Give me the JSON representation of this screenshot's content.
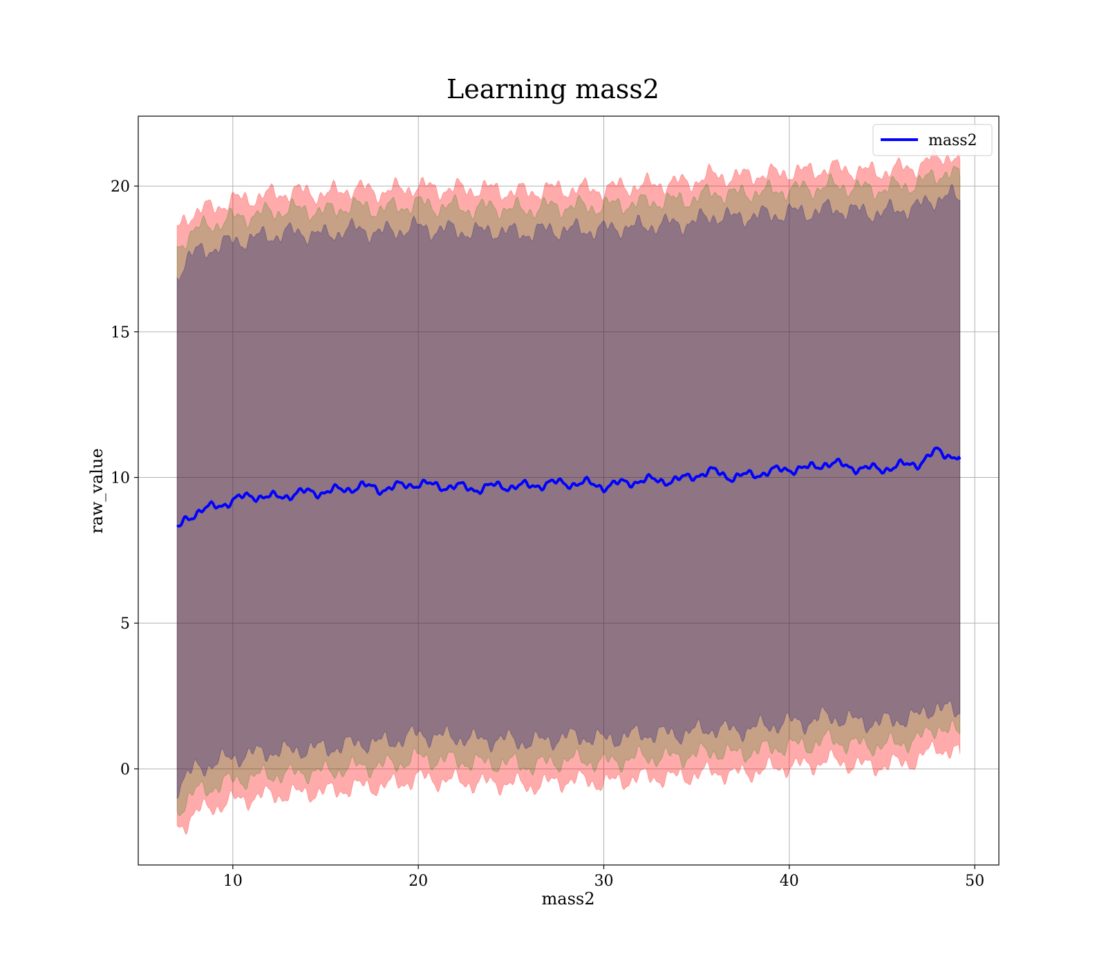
{
  "chart_data": {
    "type": "area",
    "title": "Learning mass2",
    "xlabel": "mass2",
    "ylabel": "raw_value",
    "xlim": [
      4.9,
      51.3
    ],
    "ylim": [
      -3.3,
      22.4
    ],
    "xticks": [
      10,
      20,
      30,
      40,
      50
    ],
    "yticks": [
      0,
      5,
      10,
      15,
      20
    ],
    "grid": true,
    "legend": {
      "position": "top-right",
      "entries": [
        "mass2"
      ]
    },
    "x": [
      7.0,
      7.5,
      8.0,
      9.0,
      10.0,
      11.0,
      12.0,
      13.0,
      14.0,
      15.0,
      16.0,
      17.0,
      18.0,
      19.0,
      20.0,
      21.0,
      22.0,
      23.0,
      24.0,
      25.0,
      26.0,
      27.0,
      28.0,
      29.0,
      30.0,
      31.0,
      32.0,
      33.0,
      34.0,
      35.0,
      36.0,
      37.0,
      38.0,
      39.0,
      40.0,
      41.0,
      42.0,
      43.0,
      44.0,
      45.0,
      46.0,
      47.0,
      48.0,
      48.5,
      49.2
    ],
    "series": [
      {
        "name": "mass2",
        "color": "#0000ff",
        "values": [
          8.2,
          8.6,
          8.8,
          9.0,
          9.2,
          9.4,
          9.3,
          9.4,
          9.5,
          9.5,
          9.6,
          9.7,
          9.6,
          9.7,
          9.8,
          9.7,
          9.7,
          9.6,
          9.7,
          9.7,
          9.7,
          9.8,
          9.8,
          9.8,
          9.7,
          9.8,
          9.9,
          9.9,
          9.9,
          10.1,
          10.2,
          10.0,
          10.1,
          10.2,
          10.3,
          10.3,
          10.5,
          10.4,
          10.3,
          10.3,
          10.4,
          10.5,
          10.9,
          10.8,
          10.7
        ]
      }
    ],
    "bands": [
      {
        "color": "#ff0000",
        "opacity": 0.33,
        "upper": [
          18.5,
          19.0,
          19.1,
          19.3,
          19.5,
          19.6,
          19.7,
          19.8,
          19.8,
          19.7,
          19.9,
          19.9,
          19.8,
          19.9,
          20.0,
          19.9,
          19.9,
          19.9,
          19.9,
          19.8,
          19.8,
          19.9,
          19.9,
          19.9,
          19.9,
          20.0,
          20.0,
          20.1,
          20.1,
          20.2,
          20.4,
          20.3,
          20.4,
          20.4,
          20.5,
          20.5,
          20.6,
          20.6,
          20.5,
          20.5,
          20.6,
          20.7,
          21.0,
          21.1,
          20.9
        ],
        "lower": [
          -2.1,
          -1.8,
          -1.5,
          -1.3,
          -1.1,
          -1.0,
          -0.9,
          -0.9,
          -0.8,
          -0.8,
          -0.7,
          -0.6,
          -0.6,
          -0.5,
          -0.3,
          -0.4,
          -0.4,
          -0.5,
          -0.5,
          -0.5,
          -0.6,
          -0.5,
          -0.4,
          -0.4,
          -0.5,
          -0.4,
          -0.3,
          -0.3,
          -0.3,
          -0.2,
          -0.1,
          -0.2,
          -0.1,
          0.0,
          0.1,
          0.1,
          0.3,
          0.2,
          0.1,
          0.1,
          0.2,
          0.3,
          0.8,
          0.6,
          0.5
        ]
      },
      {
        "color": "#008000",
        "opacity": 0.22,
        "upper": [
          17.8,
          18.3,
          18.5,
          18.7,
          18.9,
          19.0,
          19.1,
          19.2,
          19.2,
          19.1,
          19.3,
          19.3,
          19.2,
          19.3,
          19.4,
          19.3,
          19.3,
          19.2,
          19.3,
          19.2,
          19.2,
          19.3,
          19.3,
          19.3,
          19.3,
          19.4,
          19.4,
          19.5,
          19.5,
          19.6,
          19.8,
          19.7,
          19.8,
          19.8,
          19.9,
          19.9,
          20.0,
          20.0,
          19.9,
          19.9,
          20.0,
          20.1,
          20.4,
          20.5,
          20.3
        ],
        "lower": [
          -1.4,
          -1.1,
          -0.8,
          -0.6,
          -0.4,
          -0.3,
          -0.2,
          -0.2,
          -0.1,
          -0.1,
          0.0,
          0.1,
          0.1,
          0.2,
          0.4,
          0.3,
          0.3,
          0.2,
          0.2,
          0.2,
          0.1,
          0.2,
          0.3,
          0.3,
          0.2,
          0.3,
          0.4,
          0.4,
          0.4,
          0.5,
          0.6,
          0.5,
          0.6,
          0.7,
          0.8,
          0.8,
          1.0,
          0.9,
          0.8,
          0.8,
          0.9,
          1.0,
          1.5,
          1.3,
          1.2
        ]
      },
      {
        "color": "#000080",
        "opacity": 0.28,
        "upper": [
          17.0,
          17.5,
          17.7,
          17.9,
          18.1,
          18.2,
          18.3,
          18.4,
          18.4,
          18.3,
          18.5,
          18.5,
          18.4,
          18.5,
          18.6,
          18.5,
          18.5,
          18.4,
          18.5,
          18.4,
          18.4,
          18.5,
          18.5,
          18.5,
          18.5,
          18.6,
          18.6,
          18.7,
          18.7,
          18.8,
          19.0,
          18.9,
          19.0,
          19.0,
          19.1,
          19.1,
          19.2,
          19.2,
          19.1,
          19.1,
          19.2,
          19.3,
          19.6,
          19.7,
          19.5
        ],
        "lower": [
          -0.6,
          -0.3,
          0.0,
          0.2,
          0.4,
          0.5,
          0.6,
          0.6,
          0.7,
          0.7,
          0.8,
          0.9,
          0.9,
          1.0,
          1.2,
          1.1,
          1.1,
          1.0,
          1.0,
          1.0,
          0.9,
          1.0,
          1.1,
          1.1,
          1.0,
          1.1,
          1.2,
          1.2,
          1.2,
          1.3,
          1.4,
          1.3,
          1.4,
          1.5,
          1.6,
          1.6,
          1.8,
          1.7,
          1.6,
          1.6,
          1.7,
          1.8,
          2.2,
          2.0,
          1.9
        ]
      }
    ]
  }
}
